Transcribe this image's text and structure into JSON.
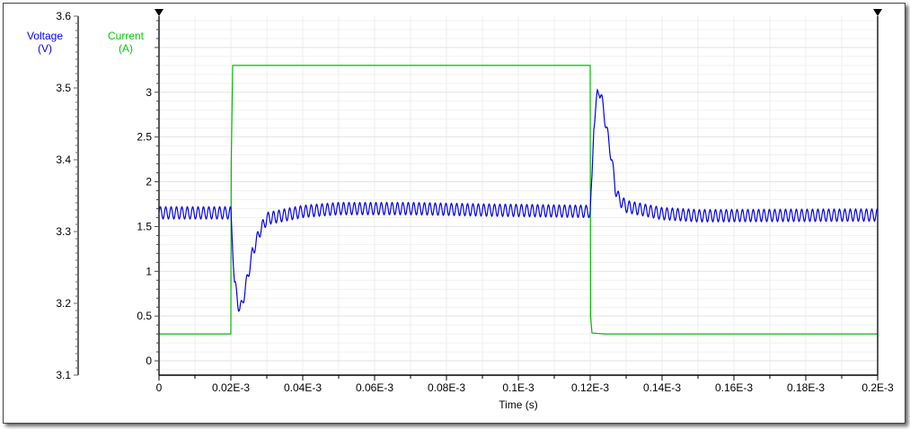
{
  "chart_data": {
    "type": "line",
    "xlabel": "Time (s)",
    "xlim": [
      0,
      0.2
    ],
    "x_unit_suffix": "E-3",
    "x_ticks": [
      "0",
      "0.02E-3",
      "0.04E-3",
      "0.06E-3",
      "0.08E-3",
      "0.1E-3",
      "0.12E-3",
      "0.14E-3",
      "0.16E-3",
      "0.18E-3",
      "0.2E-3"
    ],
    "grid": true,
    "axes": {
      "voltage": {
        "label_line1": "Voltage",
        "label_line2": "(V)",
        "color": "#0000ff",
        "ylim": [
          3.1,
          3.6
        ],
        "ticks": [
          "3.1",
          "3.2",
          "3.3",
          "3.4",
          "3.5",
          "3.6"
        ]
      },
      "current": {
        "label_line1": "Current",
        "label_line2": "(A)",
        "color": "#00cc00",
        "ylim": [
          -0.16,
          3.85
        ],
        "ticks": [
          "0",
          "0.5",
          "1",
          "1.5",
          "2",
          "2.5",
          "3"
        ]
      }
    },
    "series": [
      {
        "axis": "current",
        "color": "#00bb00",
        "x": [
          0,
          0.02,
          0.0201,
          0.0205,
          0.12,
          0.1201,
          0.1205,
          0.124,
          0.2
        ],
        "y": [
          0.3,
          0.3,
          2.2,
          3.3,
          3.3,
          0.5,
          0.31,
          0.3,
          0.3
        ]
      },
      {
        "axis": "voltage",
        "color": "#0000ee",
        "ripple_amplitude": 0.0085,
        "ripple_period": 0.0015,
        "x": [
          0,
          0.02,
          0.0205,
          0.021,
          0.022,
          0.0225,
          0.023,
          0.024,
          0.026,
          0.028,
          0.03,
          0.04,
          0.05,
          0.07,
          0.09,
          0.12,
          0.1205,
          0.121,
          0.122,
          0.1225,
          0.123,
          0.124,
          0.126,
          0.127,
          0.128,
          0.13,
          0.14,
          0.15,
          0.2
        ],
        "y": [
          3.326,
          3.326,
          3.28,
          3.23,
          3.2,
          3.193,
          3.196,
          3.22,
          3.27,
          3.3,
          3.318,
          3.328,
          3.332,
          3.332,
          3.33,
          3.328,
          3.37,
          3.45,
          3.49,
          3.497,
          3.49,
          3.46,
          3.4,
          3.36,
          3.345,
          3.335,
          3.325,
          3.322,
          3.323
        ]
      }
    ]
  }
}
